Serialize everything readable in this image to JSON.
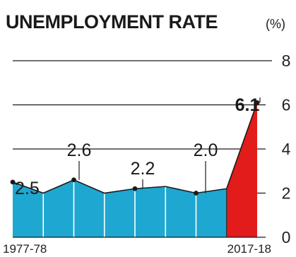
{
  "chart_data": {
    "type": "area",
    "title": "UNEMPLOYMENT RATE",
    "unit": "(%)",
    "xlabel": "",
    "ylabel": "",
    "ylim": [
      0,
      8
    ],
    "yticks": [
      0,
      2,
      4,
      6,
      8
    ],
    "grid": true,
    "x_tick_labels": [
      "1977-78",
      "2017-18"
    ],
    "series": [
      {
        "color": "#1ea7d0",
        "x": [
          0,
          1,
          2,
          3,
          4,
          5,
          6,
          7
        ],
        "values": [
          2.5,
          2.0,
          2.6,
          2.0,
          2.2,
          2.3,
          2.0,
          2.2
        ]
      },
      {
        "color": "#e21b1b",
        "x": [
          7,
          8
        ],
        "values": [
          2.2,
          6.1
        ]
      }
    ],
    "data_labels": [
      {
        "text": "2.5",
        "x": 0,
        "value": 2.5
      },
      {
        "text": "2.6",
        "x": 2,
        "value": 2.6
      },
      {
        "text": "2.2",
        "x": 4,
        "value": 2.2
      },
      {
        "text": "2.0",
        "x": 6,
        "value": 2.0
      },
      {
        "text": "6.1",
        "x": 8,
        "value": 6.1
      }
    ]
  }
}
